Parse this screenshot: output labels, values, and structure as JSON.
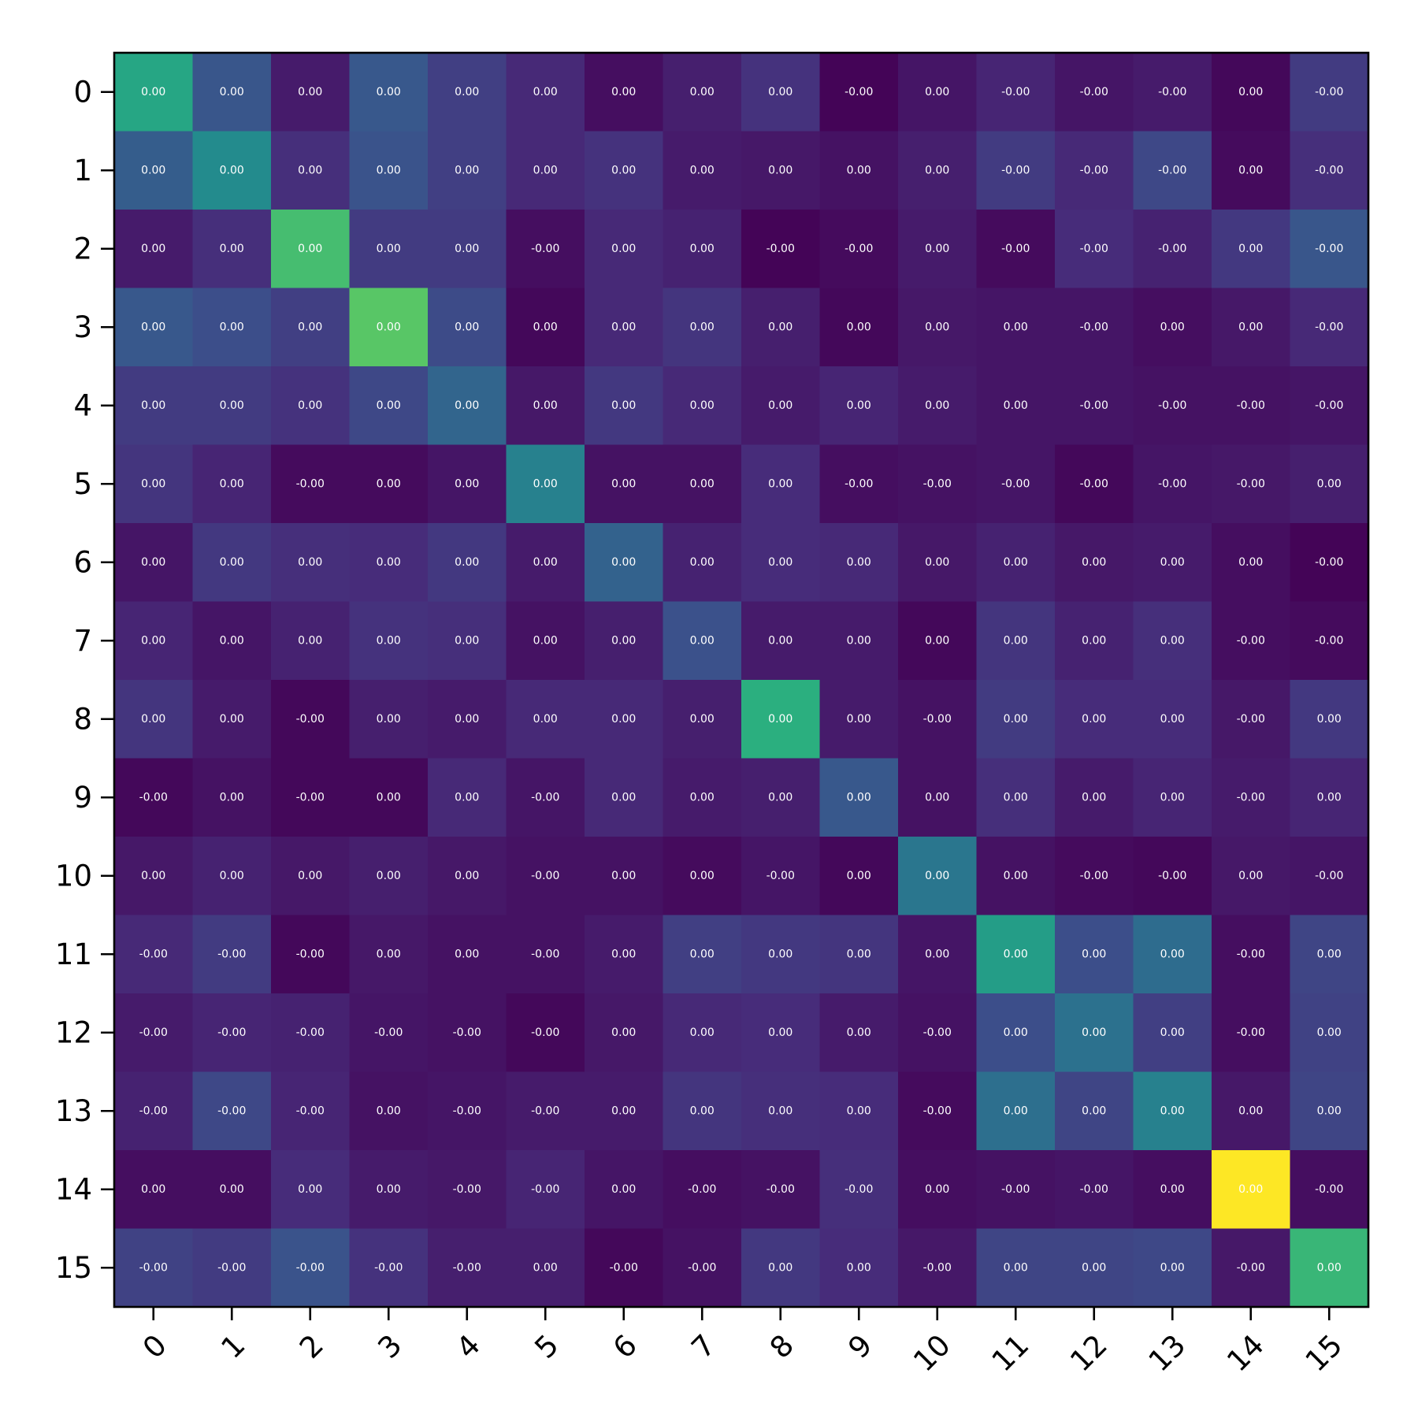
{
  "chart_data": {
    "type": "heatmap",
    "colormap": "viridis",
    "grid": false,
    "x_tick_rotation_deg": 45,
    "rows": [
      "0",
      "1",
      "2",
      "3",
      "4",
      "5",
      "6",
      "7",
      "8",
      "9",
      "10",
      "11",
      "12",
      "13",
      "14",
      "15"
    ],
    "cols": [
      "0",
      "1",
      "2",
      "3",
      "4",
      "5",
      "6",
      "7",
      "8",
      "9",
      "10",
      "11",
      "12",
      "13",
      "14",
      "15"
    ],
    "cell_labels": [
      [
        "0.00",
        "0.00",
        "0.00",
        "0.00",
        "0.00",
        "0.00",
        "0.00",
        "0.00",
        "0.00",
        "-0.00",
        "0.00",
        "-0.00",
        "-0.00",
        "-0.00",
        "0.00",
        "-0.00"
      ],
      [
        "0.00",
        "0.00",
        "0.00",
        "0.00",
        "0.00",
        "0.00",
        "0.00",
        "0.00",
        "0.00",
        "0.00",
        "0.00",
        "-0.00",
        "-0.00",
        "-0.00",
        "0.00",
        "-0.00"
      ],
      [
        "0.00",
        "0.00",
        "0.00",
        "0.00",
        "0.00",
        "-0.00",
        "0.00",
        "0.00",
        "-0.00",
        "-0.00",
        "0.00",
        "-0.00",
        "-0.00",
        "-0.00",
        "0.00",
        "-0.00"
      ],
      [
        "0.00",
        "0.00",
        "0.00",
        "0.00",
        "0.00",
        "0.00",
        "0.00",
        "0.00",
        "0.00",
        "0.00",
        "0.00",
        "0.00",
        "-0.00",
        "0.00",
        "0.00",
        "-0.00"
      ],
      [
        "0.00",
        "0.00",
        "0.00",
        "0.00",
        "0.00",
        "0.00",
        "0.00",
        "0.00",
        "0.00",
        "0.00",
        "0.00",
        "0.00",
        "-0.00",
        "-0.00",
        "-0.00",
        "-0.00"
      ],
      [
        "0.00",
        "0.00",
        "-0.00",
        "0.00",
        "0.00",
        "0.00",
        "0.00",
        "0.00",
        "0.00",
        "-0.00",
        "-0.00",
        "-0.00",
        "-0.00",
        "-0.00",
        "-0.00",
        "0.00"
      ],
      [
        "0.00",
        "0.00",
        "0.00",
        "0.00",
        "0.00",
        "0.00",
        "0.00",
        "0.00",
        "0.00",
        "0.00",
        "0.00",
        "0.00",
        "0.00",
        "0.00",
        "0.00",
        "-0.00"
      ],
      [
        "0.00",
        "0.00",
        "0.00",
        "0.00",
        "0.00",
        "0.00",
        "0.00",
        "0.00",
        "0.00",
        "0.00",
        "0.00",
        "0.00",
        "0.00",
        "0.00",
        "-0.00",
        "-0.00"
      ],
      [
        "0.00",
        "0.00",
        "-0.00",
        "0.00",
        "0.00",
        "0.00",
        "0.00",
        "0.00",
        "0.00",
        "0.00",
        "-0.00",
        "0.00",
        "0.00",
        "0.00",
        "-0.00",
        "0.00"
      ],
      [
        "-0.00",
        "0.00",
        "-0.00",
        "0.00",
        "0.00",
        "-0.00",
        "0.00",
        "0.00",
        "0.00",
        "0.00",
        "0.00",
        "0.00",
        "0.00",
        "0.00",
        "-0.00",
        "0.00"
      ],
      [
        "0.00",
        "0.00",
        "0.00",
        "0.00",
        "0.00",
        "-0.00",
        "0.00",
        "0.00",
        "-0.00",
        "0.00",
        "0.00",
        "0.00",
        "-0.00",
        "-0.00",
        "0.00",
        "-0.00"
      ],
      [
        "-0.00",
        "-0.00",
        "-0.00",
        "0.00",
        "0.00",
        "-0.00",
        "0.00",
        "0.00",
        "0.00",
        "0.00",
        "0.00",
        "0.00",
        "0.00",
        "0.00",
        "-0.00",
        "0.00"
      ],
      [
        "-0.00",
        "-0.00",
        "-0.00",
        "-0.00",
        "-0.00",
        "-0.00",
        "0.00",
        "0.00",
        "0.00",
        "0.00",
        "-0.00",
        "0.00",
        "0.00",
        "0.00",
        "-0.00",
        "0.00"
      ],
      [
        "-0.00",
        "-0.00",
        "-0.00",
        "0.00",
        "-0.00",
        "-0.00",
        "0.00",
        "0.00",
        "0.00",
        "0.00",
        "-0.00",
        "0.00",
        "0.00",
        "0.00",
        "0.00",
        "0.00"
      ],
      [
        "0.00",
        "0.00",
        "0.00",
        "0.00",
        "-0.00",
        "-0.00",
        "0.00",
        "-0.00",
        "-0.00",
        "-0.00",
        "0.00",
        "-0.00",
        "-0.00",
        "0.00",
        "0.00",
        "-0.00"
      ],
      [
        "-0.00",
        "-0.00",
        "-0.00",
        "-0.00",
        "-0.00",
        "0.00",
        "-0.00",
        "-0.00",
        "0.00",
        "0.00",
        "-0.00",
        "0.00",
        "0.00",
        "0.00",
        "-0.00",
        "0.00"
      ]
    ],
    "intensity": [
      [
        0.6,
        0.27,
        0.08,
        0.28,
        0.19,
        0.12,
        0.04,
        0.09,
        0.15,
        0.01,
        0.06,
        0.11,
        0.06,
        0.08,
        0.02,
        0.18
      ],
      [
        0.3,
        0.48,
        0.14,
        0.26,
        0.19,
        0.12,
        0.15,
        0.08,
        0.07,
        0.05,
        0.09,
        0.18,
        0.12,
        0.22,
        0.03,
        0.14
      ],
      [
        0.08,
        0.14,
        0.7,
        0.18,
        0.18,
        0.04,
        0.12,
        0.1,
        0.01,
        0.03,
        0.08,
        0.03,
        0.13,
        0.1,
        0.17,
        0.27
      ],
      [
        0.28,
        0.24,
        0.19,
        0.74,
        0.23,
        0.02,
        0.12,
        0.16,
        0.09,
        0.02,
        0.07,
        0.06,
        0.06,
        0.04,
        0.07,
        0.12
      ],
      [
        0.18,
        0.18,
        0.15,
        0.22,
        0.33,
        0.07,
        0.17,
        0.12,
        0.08,
        0.11,
        0.08,
        0.06,
        0.06,
        0.05,
        0.05,
        0.06
      ],
      [
        0.16,
        0.11,
        0.03,
        0.03,
        0.06,
        0.44,
        0.05,
        0.05,
        0.13,
        0.04,
        0.05,
        0.06,
        0.02,
        0.06,
        0.07,
        0.09
      ],
      [
        0.06,
        0.17,
        0.14,
        0.13,
        0.17,
        0.08,
        0.32,
        0.1,
        0.13,
        0.12,
        0.07,
        0.1,
        0.07,
        0.08,
        0.04,
        0.01
      ],
      [
        0.11,
        0.06,
        0.1,
        0.15,
        0.14,
        0.05,
        0.09,
        0.25,
        0.08,
        0.08,
        0.02,
        0.16,
        0.1,
        0.14,
        0.04,
        0.03
      ],
      [
        0.16,
        0.08,
        0.02,
        0.09,
        0.08,
        0.12,
        0.12,
        0.09,
        0.64,
        0.08,
        0.05,
        0.18,
        0.13,
        0.13,
        0.07,
        0.17
      ],
      [
        0.02,
        0.05,
        0.02,
        0.02,
        0.12,
        0.06,
        0.12,
        0.08,
        0.09,
        0.28,
        0.05,
        0.14,
        0.08,
        0.11,
        0.08,
        0.11
      ],
      [
        0.07,
        0.1,
        0.07,
        0.09,
        0.07,
        0.05,
        0.05,
        0.03,
        0.06,
        0.02,
        0.4,
        0.05,
        0.03,
        0.02,
        0.07,
        0.06
      ],
      [
        0.12,
        0.18,
        0.02,
        0.07,
        0.05,
        0.05,
        0.08,
        0.19,
        0.17,
        0.16,
        0.06,
        0.56,
        0.24,
        0.36,
        0.04,
        0.21
      ],
      [
        0.08,
        0.11,
        0.1,
        0.06,
        0.05,
        0.02,
        0.07,
        0.12,
        0.13,
        0.08,
        0.05,
        0.24,
        0.38,
        0.19,
        0.04,
        0.2
      ],
      [
        0.1,
        0.22,
        0.11,
        0.05,
        0.06,
        0.08,
        0.08,
        0.16,
        0.14,
        0.13,
        0.03,
        0.37,
        0.21,
        0.44,
        0.07,
        0.21
      ],
      [
        0.04,
        0.04,
        0.13,
        0.08,
        0.07,
        0.11,
        0.06,
        0.04,
        0.05,
        0.14,
        0.04,
        0.05,
        0.06,
        0.04,
        1.0,
        0.04
      ],
      [
        0.2,
        0.18,
        0.26,
        0.15,
        0.09,
        0.09,
        0.02,
        0.05,
        0.17,
        0.13,
        0.07,
        0.21,
        0.21,
        0.22,
        0.07,
        0.67
      ]
    ]
  }
}
